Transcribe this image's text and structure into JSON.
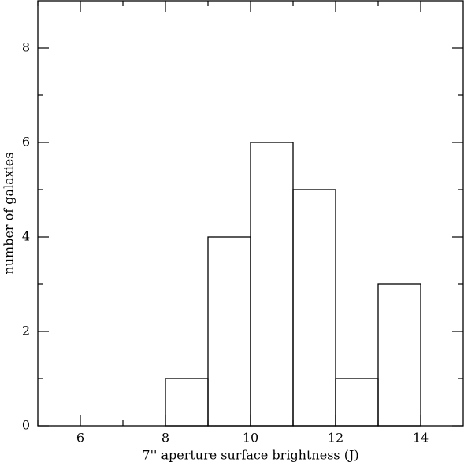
{
  "chart_data": {
    "type": "histogram",
    "x_label": "7'' aperture surface brightness (J)",
    "y_label": "number of galaxies",
    "bins": [
      8,
      9,
      10,
      11,
      12,
      13,
      14
    ],
    "values": [
      1,
      4,
      6,
      5,
      1,
      3
    ],
    "color": "#000000",
    "xlim": [
      5,
      15
    ],
    "ylim": [
      0,
      9
    ],
    "xticks": [
      6,
      8,
      10,
      12,
      14
    ],
    "yticks": [
      0,
      2,
      4,
      6,
      8
    ]
  }
}
